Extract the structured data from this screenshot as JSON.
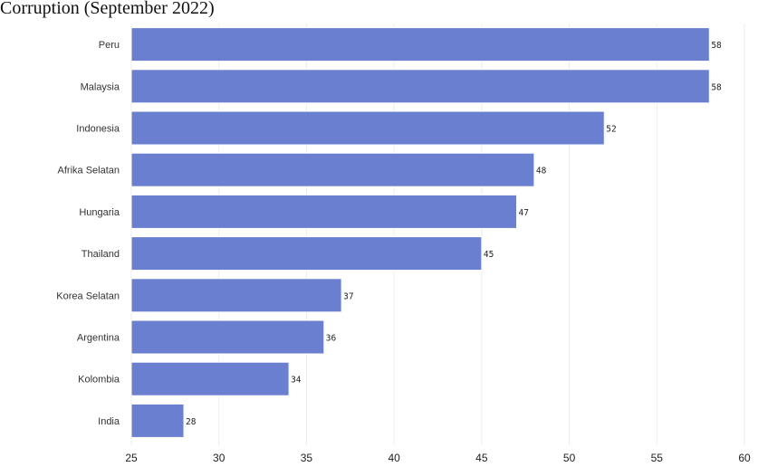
{
  "chart_data": {
    "type": "bar",
    "orientation": "horizontal",
    "title": "Corruption (September 2022)",
    "xlabel": "",
    "ylabel": "",
    "categories": [
      "Peru",
      "Malaysia",
      "Indonesia",
      "Afrika Selatan",
      "Hungaria",
      "Thailand",
      "Korea Selatan",
      "Argentina",
      "Kolombia",
      "India"
    ],
    "values": [
      58,
      58,
      52,
      48,
      47,
      45,
      37,
      36,
      34,
      28
    ],
    "xlim": [
      25,
      60
    ],
    "xticks": [
      25,
      30,
      35,
      40,
      45,
      50,
      55,
      60
    ],
    "grid": "vertical",
    "bar_color": "#6a7fd0",
    "bar_edge_color": "#ffffff"
  }
}
